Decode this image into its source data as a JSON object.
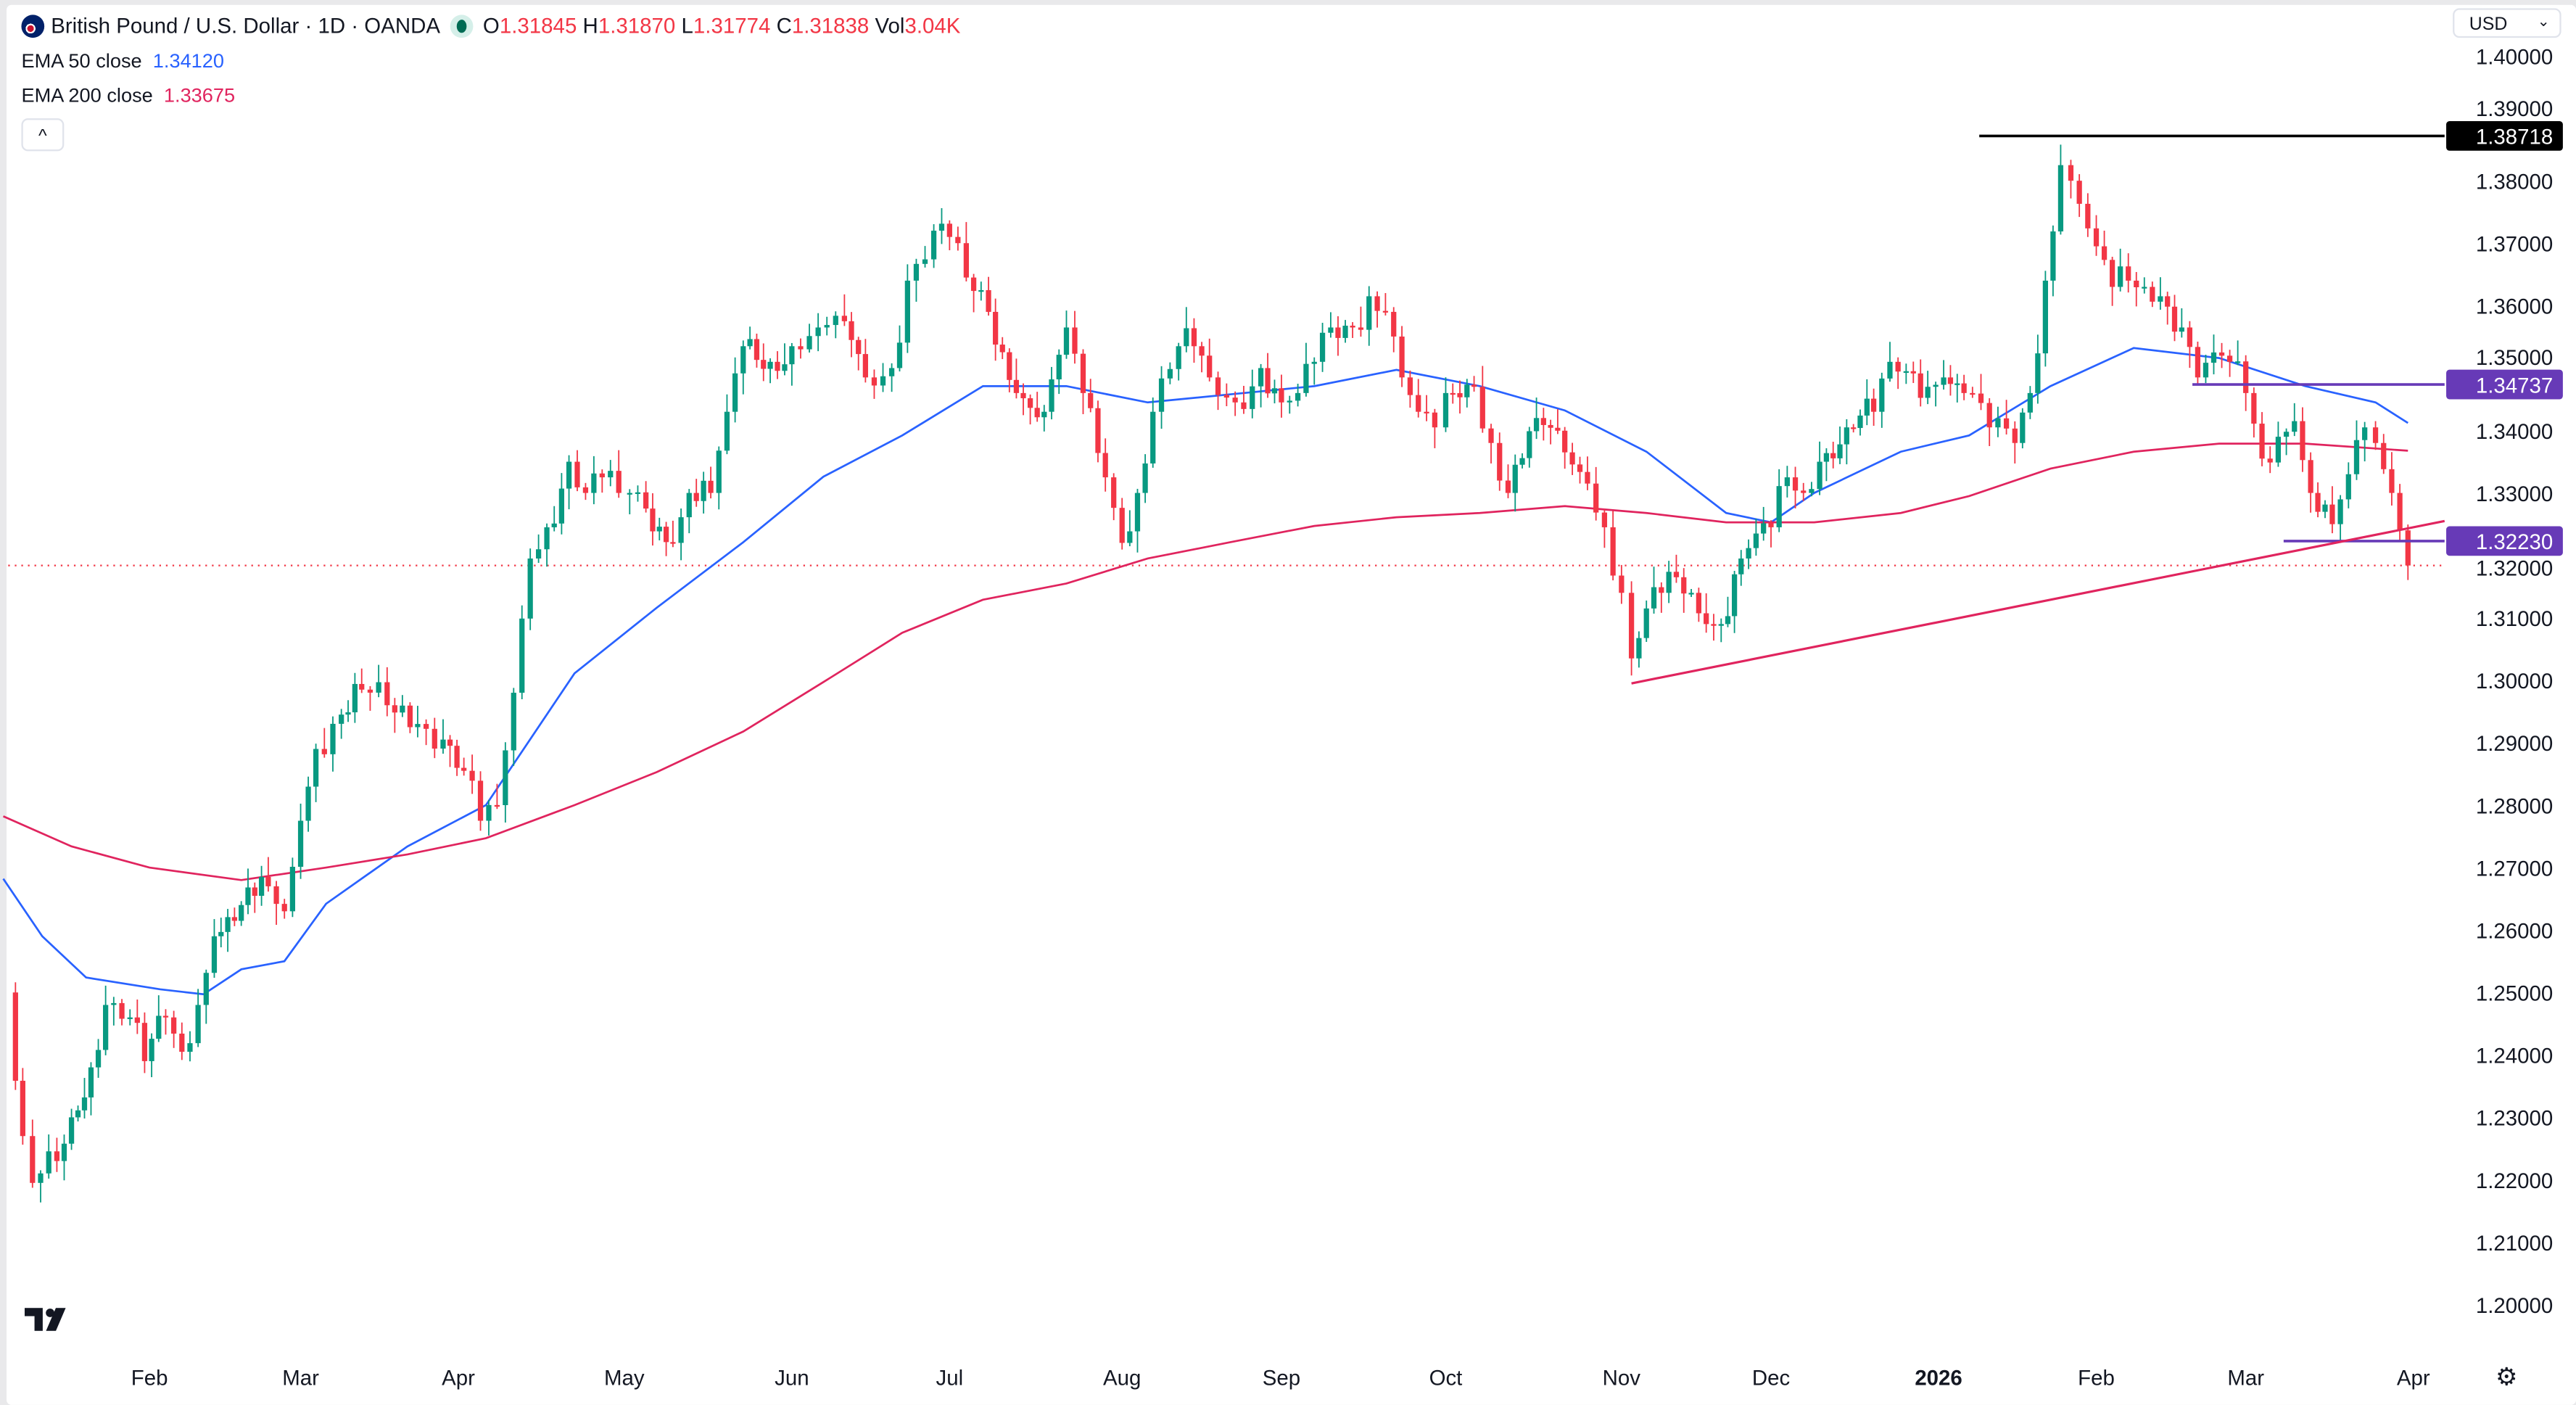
{
  "header": {
    "symbol": "British Pound / U.S. Dollar · 1D · OANDA",
    "o_label": "O",
    "o": "1.31845",
    "h_label": "H",
    "h": "1.31870",
    "l_label": "L",
    "l": "1.31774",
    "c_label": "C",
    "c": "1.31838",
    "vol_label": "Vol",
    "vol": "3.04K",
    "market_status": "open"
  },
  "indicators": [
    {
      "label": "EMA 50 close",
      "value": "1.34120",
      "color": "#2962ff"
    },
    {
      "label": "EMA 200 close",
      "value": "1.33675",
      "color": "#e0245e"
    }
  ],
  "collapse_label": "^",
  "currency": {
    "selected": "USD",
    "chevron": "⌄"
  },
  "logo_text": "TV",
  "settings_icon": "gear-icon",
  "colors": {
    "up": "#089981",
    "down": "#f23645",
    "ema50": "#2962ff",
    "ema200": "#e0245e",
    "level_purple": "#673ab7",
    "level_black": "#000000",
    "trendline": "#e0245e"
  },
  "chart_data": {
    "type": "candlestick",
    "symbol": "GBPUSD",
    "timeframe": "1D",
    "ylim": [
      1.195,
      1.405
    ],
    "y_ticks": [
      "1.40000",
      "1.39000",
      "1.38000",
      "1.37000",
      "1.36000",
      "1.35000",
      "1.34000",
      "1.33000",
      "1.32000",
      "1.31000",
      "1.30000",
      "1.29000",
      "1.28000",
      "1.27000",
      "1.26000",
      "1.25000",
      "1.24000",
      "1.23000",
      "1.22000",
      "1.21000",
      "1.20000"
    ],
    "x_ticks": [
      {
        "label": "Feb",
        "date": "2025-02-01"
      },
      {
        "label": "Mar",
        "date": "2025-03-01"
      },
      {
        "label": "Apr",
        "date": "2025-04-01"
      },
      {
        "label": "May",
        "date": "2025-05-01"
      },
      {
        "label": "Jun",
        "date": "2025-06-01"
      },
      {
        "label": "Jul",
        "date": "2025-07-01"
      },
      {
        "label": "Aug",
        "date": "2025-08-01"
      },
      {
        "label": "Sep",
        "date": "2025-09-01"
      },
      {
        "label": "Oct",
        "date": "2025-10-01"
      },
      {
        "label": "Nov",
        "date": "2025-11-01"
      },
      {
        "label": "Dec",
        "date": "2025-12-01"
      },
      {
        "label": "2026",
        "date": "2026-01-01",
        "bold": true
      },
      {
        "label": "Feb",
        "date": "2026-02-01"
      },
      {
        "label": "Mar",
        "date": "2026-03-01"
      },
      {
        "label": "Apr",
        "date": "2026-04-01"
      }
    ],
    "closes": [
      [
        "2025-01-03",
        1.246
      ],
      [
        "2025-01-06",
        1.227
      ],
      [
        "2025-01-08",
        1.2195
      ],
      [
        "2025-01-13",
        1.223
      ],
      [
        "2025-01-16",
        1.23
      ],
      [
        "2025-01-20",
        1.238
      ],
      [
        "2025-01-23",
        1.248
      ],
      [
        "2025-01-28",
        1.246
      ],
      [
        "2025-01-31",
        1.239
      ],
      [
        "2025-02-04",
        1.246
      ],
      [
        "2025-02-07",
        1.2405
      ],
      [
        "2025-02-10",
        1.248
      ],
      [
        "2025-02-13",
        1.259
      ],
      [
        "2025-02-18",
        1.264
      ],
      [
        "2025-02-23",
        1.267
      ],
      [
        "2025-02-26",
        1.263
      ],
      [
        "2025-03-01",
        1.2775
      ],
      [
        "2025-03-04",
        1.289
      ],
      [
        "2025-03-09",
        1.2945
      ],
      [
        "2025-03-13",
        1.2985
      ],
      [
        "2025-03-18",
        1.296
      ],
      [
        "2025-03-24",
        1.293
      ],
      [
        "2025-03-29",
        1.2905
      ],
      [
        "2025-04-02",
        1.2855
      ],
      [
        "2025-04-05",
        1.2775
      ],
      [
        "2025-04-08",
        1.28
      ],
      [
        "2025-04-11",
        1.298
      ],
      [
        "2025-04-14",
        1.3195
      ],
      [
        "2025-04-17",
        1.3245
      ],
      [
        "2025-04-21",
        1.335
      ],
      [
        "2025-04-24",
        1.33
      ],
      [
        "2025-04-27",
        1.3325
      ],
      [
        "2025-04-30",
        1.33
      ],
      [
        "2025-05-02",
        1.33
      ],
      [
        "2025-05-05",
        1.3275
      ],
      [
        "2025-05-10",
        1.322
      ],
      [
        "2025-05-13",
        1.33
      ],
      [
        "2025-05-17",
        1.33
      ],
      [
        "2025-05-20",
        1.343
      ],
      [
        "2025-05-23",
        1.3535
      ],
      [
        "2025-05-28",
        1.351
      ],
      [
        "2025-06-01",
        1.3535
      ],
      [
        "2025-06-06",
        1.3565
      ],
      [
        "2025-06-11",
        1.3575
      ],
      [
        "2025-06-15",
        1.3485
      ],
      [
        "2025-06-20",
        1.35
      ],
      [
        "2025-06-23",
        1.364
      ],
      [
        "2025-06-28",
        1.372
      ],
      [
        "2025-07-01",
        1.371
      ],
      [
        "2025-07-04",
        1.3645
      ],
      [
        "2025-07-08",
        1.359
      ],
      [
        "2025-07-13",
        1.346
      ],
      [
        "2025-07-18",
        1.343
      ],
      [
        "2025-07-22",
        1.3565
      ],
      [
        "2025-07-25",
        1.346
      ],
      [
        "2025-07-29",
        1.3325
      ],
      [
        "2025-08-01",
        1.322
      ],
      [
        "2025-08-04",
        1.33
      ],
      [
        "2025-08-07",
        1.343
      ],
      [
        "2025-08-12",
        1.3535
      ],
      [
        "2025-08-15",
        1.3535
      ],
      [
        "2025-08-18",
        1.3485
      ],
      [
        "2025-08-23",
        1.3445
      ],
      [
        "2025-08-28",
        1.35
      ],
      [
        "2025-09-01",
        1.3445
      ],
      [
        "2025-09-04",
        1.346
      ],
      [
        "2025-09-07",
        1.351
      ],
      [
        "2025-09-10",
        1.3565
      ],
      [
        "2025-09-14",
        1.3565
      ],
      [
        "2025-09-17",
        1.3615
      ],
      [
        "2025-09-20",
        1.359
      ],
      [
        "2025-09-23",
        1.3485
      ],
      [
        "2025-09-26",
        1.343
      ],
      [
        "2025-09-29",
        1.3405
      ],
      [
        "2025-10-01",
        1.346
      ],
      [
        "2025-10-06",
        1.347
      ],
      [
        "2025-10-09",
        1.338
      ],
      [
        "2025-10-12",
        1.33
      ],
      [
        "2025-10-17",
        1.342
      ],
      [
        "2025-10-22",
        1.3365
      ],
      [
        "2025-10-26",
        1.3315
      ],
      [
        "2025-10-29",
        1.3245
      ],
      [
        "2025-11-01",
        1.314
      ],
      [
        "2025-11-03",
        1.3035
      ],
      [
        "2025-11-06",
        1.3115
      ],
      [
        "2025-11-09",
        1.314
      ],
      [
        "2025-11-12",
        1.3165
      ],
      [
        "2025-11-15",
        1.314
      ],
      [
        "2025-11-18",
        1.309
      ],
      [
        "2025-11-21",
        1.309
      ],
      [
        "2025-11-25",
        1.3195
      ],
      [
        "2025-11-28",
        1.3235
      ],
      [
        "2025-12-01",
        1.3245
      ],
      [
        "2025-12-04",
        1.3325
      ],
      [
        "2025-12-07",
        1.33
      ],
      [
        "2025-12-10",
        1.335
      ],
      [
        "2025-12-15",
        1.3405
      ],
      [
        "2025-12-20",
        1.343
      ],
      [
        "2025-12-23",
        1.351
      ],
      [
        "2025-12-26",
        1.3495
      ],
      [
        "2025-12-30",
        1.347
      ],
      [
        "2026-01-02",
        1.3485
      ],
      [
        "2026-01-06",
        1.346
      ],
      [
        "2026-01-11",
        1.3405
      ],
      [
        "2026-01-16",
        1.338
      ],
      [
        "2026-01-19",
        1.346
      ],
      [
        "2026-01-22",
        1.364
      ],
      [
        "2026-01-25",
        1.3825
      ],
      [
        "2026-01-27",
        1.38
      ],
      [
        "2026-02-01",
        1.3695
      ],
      [
        "2026-02-04",
        1.363
      ],
      [
        "2026-02-07",
        1.364
      ],
      [
        "2026-02-10",
        1.363
      ],
      [
        "2026-02-13",
        1.3615
      ],
      [
        "2026-02-17",
        1.3565
      ],
      [
        "2026-02-20",
        1.3485
      ],
      [
        "2026-02-23",
        1.3525
      ],
      [
        "2026-02-26",
        1.351
      ],
      [
        "2026-03-01",
        1.346
      ],
      [
        "2026-03-04",
        1.3355
      ],
      [
        "2026-03-07",
        1.339
      ],
      [
        "2026-03-10",
        1.3415
      ],
      [
        "2026-03-13",
        1.33
      ],
      [
        "2026-03-17",
        1.325
      ],
      [
        "2026-03-20",
        1.333
      ],
      [
        "2026-03-23",
        1.3405
      ],
      [
        "2026-03-25",
        1.338
      ],
      [
        "2026-03-28",
        1.33
      ],
      [
        "2026-03-31",
        1.31838
      ]
    ],
    "series": [
      {
        "name": "EMA 50 close",
        "color": "#2962ff",
        "points": [
          [
            "2025-01-02",
            1.2682
          ],
          [
            "2025-01-10",
            1.259
          ],
          [
            "2025-01-19",
            1.2524
          ],
          [
            "2025-02-03",
            1.2505
          ],
          [
            "2025-02-11",
            1.2497
          ],
          [
            "2025-02-18",
            1.2537
          ],
          [
            "2025-02-26",
            1.255
          ],
          [
            "2025-03-06",
            1.2642
          ],
          [
            "2025-03-22",
            1.2734
          ],
          [
            "2025-04-06",
            1.28
          ],
          [
            "2025-04-22",
            1.3011
          ],
          [
            "2025-05-07",
            1.3116
          ],
          [
            "2025-05-23",
            1.3221
          ],
          [
            "2025-06-07",
            1.3326
          ],
          [
            "2025-06-22",
            1.3392
          ],
          [
            "2025-07-07",
            1.3471
          ],
          [
            "2025-07-22",
            1.3471
          ],
          [
            "2025-08-06",
            1.3445
          ],
          [
            "2025-08-22",
            1.3458
          ],
          [
            "2025-09-07",
            1.3471
          ],
          [
            "2025-09-22",
            1.3497
          ],
          [
            "2025-10-07",
            1.3471
          ],
          [
            "2025-10-22",
            1.3432
          ],
          [
            "2025-11-06",
            1.3366
          ],
          [
            "2025-11-22",
            1.3268
          ],
          [
            "2025-12-01",
            1.3253
          ],
          [
            "2025-12-09",
            1.33
          ],
          [
            "2025-12-25",
            1.3366
          ],
          [
            "2026-01-07",
            1.3392
          ],
          [
            "2026-01-23",
            1.3471
          ],
          [
            "2026-02-08",
            1.3532
          ],
          [
            "2026-02-24",
            1.3516
          ],
          [
            "2026-03-12",
            1.3471
          ],
          [
            "2026-03-25",
            1.3445
          ],
          [
            "2026-03-31",
            1.3412
          ]
        ]
      },
      {
        "name": "EMA 200 close",
        "color": "#e0245e",
        "points": [
          [
            "2025-01-02",
            1.2782
          ],
          [
            "2025-01-16",
            1.2734
          ],
          [
            "2025-02-01",
            1.27
          ],
          [
            "2025-02-18",
            1.268
          ],
          [
            "2025-03-06",
            1.27
          ],
          [
            "2025-03-22",
            1.2721
          ],
          [
            "2025-04-06",
            1.2747
          ],
          [
            "2025-04-22",
            1.28
          ],
          [
            "2025-05-07",
            1.2853
          ],
          [
            "2025-05-23",
            1.2918
          ],
          [
            "2025-06-07",
            1.2997
          ],
          [
            "2025-06-22",
            1.3076
          ],
          [
            "2025-07-07",
            1.3129
          ],
          [
            "2025-07-22",
            1.3155
          ],
          [
            "2025-08-06",
            1.3195
          ],
          [
            "2025-08-22",
            1.3221
          ],
          [
            "2025-09-07",
            1.3247
          ],
          [
            "2025-09-22",
            1.3261
          ],
          [
            "2025-10-07",
            1.3268
          ],
          [
            "2025-10-22",
            1.3279
          ],
          [
            "2025-11-06",
            1.3268
          ],
          [
            "2025-11-22",
            1.3253
          ],
          [
            "2025-12-09",
            1.3253
          ],
          [
            "2025-12-25",
            1.3268
          ],
          [
            "2026-01-07",
            1.3295
          ],
          [
            "2026-01-23",
            1.3339
          ],
          [
            "2026-02-08",
            1.3366
          ],
          [
            "2026-02-24",
            1.3379
          ],
          [
            "2026-03-12",
            1.3379
          ],
          [
            "2026-03-31",
            1.33675
          ]
        ]
      }
    ],
    "annotations": [
      {
        "type": "hline",
        "price": 1.38718,
        "label": "1.38718",
        "from": "2026-01-09",
        "color": "#000000"
      },
      {
        "type": "hline",
        "price": 1.34737,
        "label": "1.34737",
        "from": "2026-02-19",
        "color": "#673ab7"
      },
      {
        "type": "hline",
        "price": 1.3223,
        "label": "1.32230",
        "from": "2026-03-08",
        "color": "#673ab7"
      },
      {
        "type": "trendline",
        "points": [
          [
            "2025-11-03",
            1.2995
          ],
          [
            "2026-04-07",
            1.3255
          ]
        ],
        "color": "#e0245e"
      },
      {
        "type": "last-price",
        "price": 1.31838,
        "color": "#f23645"
      }
    ],
    "grid": false
  }
}
